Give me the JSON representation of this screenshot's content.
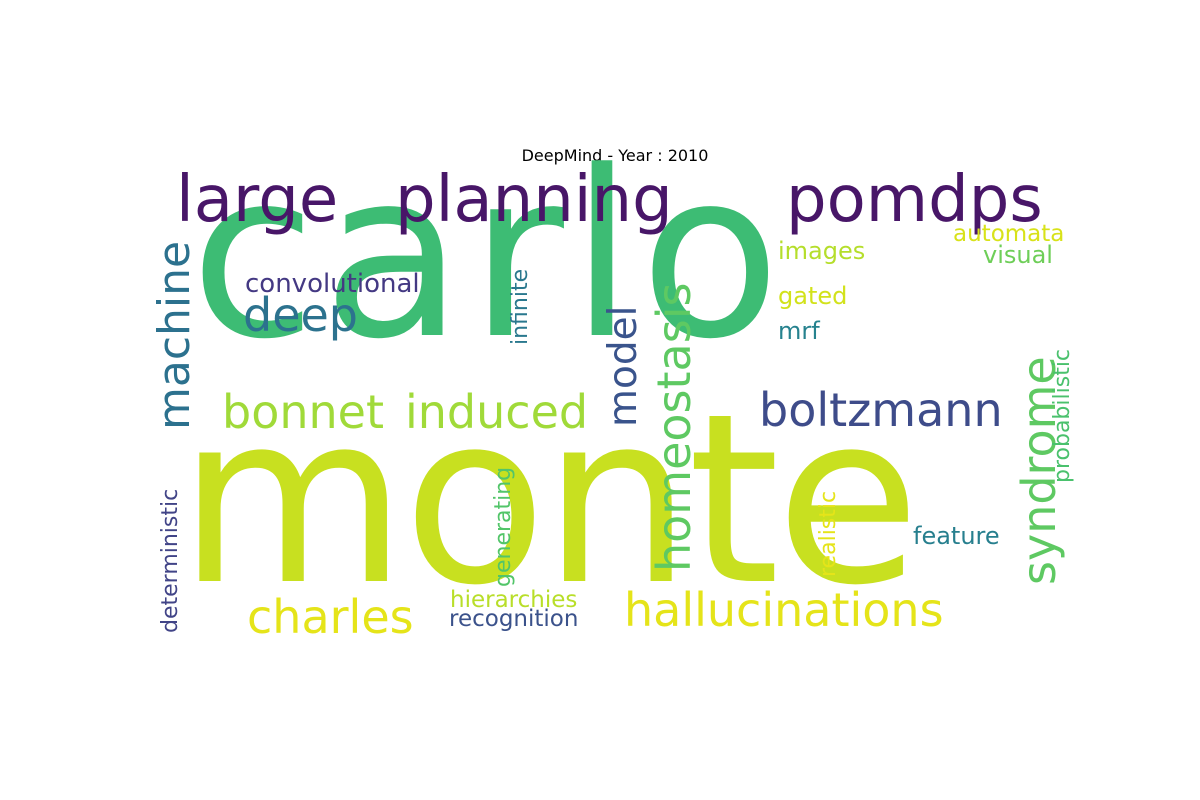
{
  "figure": {
    "title": "DeepMind - Year : 2010"
  },
  "chart_data": {
    "type": "wordcloud",
    "title": "DeepMind - Year : 2010",
    "colormap": "viridis",
    "background": "#ffffff",
    "words": [
      {
        "text": "monte",
        "weight": 1.0,
        "color": "#c8e020",
        "vertical": false
      },
      {
        "text": "carlo",
        "weight": 0.95,
        "color": "#3dbc74",
        "vertical": false
      },
      {
        "text": "large",
        "weight": 0.4,
        "color": "#481668",
        "vertical": false
      },
      {
        "text": "planning",
        "weight": 0.4,
        "color": "#481668",
        "vertical": false
      },
      {
        "text": "pomdps",
        "weight": 0.4,
        "color": "#481668",
        "vertical": false
      },
      {
        "text": "hallucinations",
        "weight": 0.27,
        "color": "#e5e419",
        "vertical": false
      },
      {
        "text": "charles",
        "weight": 0.27,
        "color": "#e5e419",
        "vertical": false
      },
      {
        "text": "bonnet",
        "weight": 0.27,
        "color": "#a0da39",
        "vertical": false
      },
      {
        "text": "induced",
        "weight": 0.27,
        "color": "#a0da39",
        "vertical": false
      },
      {
        "text": "boltzmann",
        "weight": 0.27,
        "color": "#3e4c8a",
        "vertical": false
      },
      {
        "text": "machine",
        "weight": 0.27,
        "color": "#2c718e",
        "vertical": true
      },
      {
        "text": "homeostasis",
        "weight": 0.27,
        "color": "#5ec962",
        "vertical": true
      },
      {
        "text": "syndrome",
        "weight": 0.27,
        "color": "#5ec962",
        "vertical": true
      },
      {
        "text": "deep",
        "weight": 0.27,
        "color": "#2c728e",
        "vertical": false
      },
      {
        "text": "model",
        "weight": 0.2,
        "color": "#3a548c",
        "vertical": true
      },
      {
        "text": "convolutional",
        "weight": 0.17,
        "color": "#443983",
        "vertical": false
      },
      {
        "text": "infinite",
        "weight": 0.13,
        "color": "#2a788e",
        "vertical": true
      },
      {
        "text": "images",
        "weight": 0.14,
        "color": "#b5de2b",
        "vertical": false
      },
      {
        "text": "automata",
        "weight": 0.14,
        "color": "#d8e219",
        "vertical": false
      },
      {
        "text": "visual",
        "weight": 0.14,
        "color": "#6ece58",
        "vertical": false
      },
      {
        "text": "gated",
        "weight": 0.14,
        "color": "#d2e21b",
        "vertical": false
      },
      {
        "text": "mrf",
        "weight": 0.14,
        "color": "#26828e",
        "vertical": false
      },
      {
        "text": "probabilistic",
        "weight": 0.13,
        "color": "#4ac16d",
        "vertical": true
      },
      {
        "text": "feature",
        "weight": 0.14,
        "color": "#277f8e",
        "vertical": false
      },
      {
        "text": "realistic",
        "weight": 0.13,
        "color": "#e5e419",
        "vertical": true
      },
      {
        "text": "generating",
        "weight": 0.13,
        "color": "#52c569",
        "vertical": true
      },
      {
        "text": "deterministic",
        "weight": 0.13,
        "color": "#414487",
        "vertical": true
      },
      {
        "text": "hierarchies",
        "weight": 0.13,
        "color": "#b8de29",
        "vertical": false
      },
      {
        "text": "recognition",
        "weight": 0.13,
        "color": "#3b528b",
        "vertical": false
      }
    ]
  }
}
